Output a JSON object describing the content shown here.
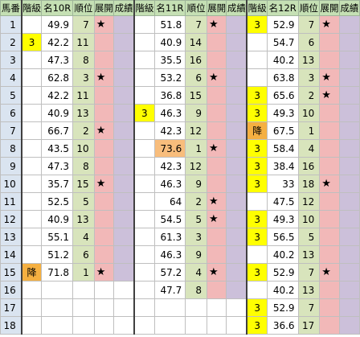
{
  "header": {
    "ban": "馬番",
    "races": [
      {
        "kyu": "階級",
        "name": "名10R",
        "rank": "順位",
        "tenkai": "展開",
        "seiseki": "成績"
      },
      {
        "kyu": "階級",
        "name": "名11R",
        "rank": "順位",
        "tenkai": "展開",
        "seiseki": "成績"
      },
      {
        "kyu": "階級",
        "name": "名12R",
        "rank": "順位",
        "tenkai": "展開",
        "seiseki": "成績"
      }
    ]
  },
  "star": "★",
  "rows": [
    {
      "ban": "1",
      "races": [
        {
          "kyu": "",
          "score": "49.9",
          "rank": "7",
          "star": true
        },
        {
          "kyu": "",
          "score": "51.8",
          "rank": "7",
          "star": true
        },
        {
          "kyu": "3",
          "score": "52.9",
          "rank": "7",
          "star": true
        }
      ]
    },
    {
      "ban": "2",
      "races": [
        {
          "kyu": "3",
          "score": "42.2",
          "rank": "11",
          "star": false
        },
        {
          "kyu": "",
          "score": "40.9",
          "rank": "14",
          "star": false
        },
        {
          "kyu": "",
          "score": "54.7",
          "rank": "6",
          "star": false
        }
      ]
    },
    {
      "ban": "3",
      "races": [
        {
          "kyu": "",
          "score": "47.3",
          "rank": "8",
          "star": false
        },
        {
          "kyu": "",
          "score": "35.5",
          "rank": "16",
          "star": false
        },
        {
          "kyu": "",
          "score": "40.2",
          "rank": "13",
          "star": false
        }
      ]
    },
    {
      "ban": "4",
      "races": [
        {
          "kyu": "",
          "score": "62.8",
          "rank": "3",
          "star": true
        },
        {
          "kyu": "",
          "score": "53.2",
          "rank": "6",
          "star": true
        },
        {
          "kyu": "",
          "score": "63.8",
          "rank": "3",
          "star": true
        }
      ]
    },
    {
      "ban": "5",
      "races": [
        {
          "kyu": "",
          "score": "42.2",
          "rank": "11",
          "star": false
        },
        {
          "kyu": "",
          "score": "36.8",
          "rank": "15",
          "star": false
        },
        {
          "kyu": "3",
          "score": "65.6",
          "rank": "2",
          "star": true
        }
      ]
    },
    {
      "ban": "6",
      "races": [
        {
          "kyu": "",
          "score": "40.9",
          "rank": "13",
          "star": false
        },
        {
          "kyu": "3",
          "score": "46.3",
          "rank": "9",
          "star": false
        },
        {
          "kyu": "3",
          "score": "49.3",
          "rank": "10",
          "star": false
        }
      ]
    },
    {
      "ban": "7",
      "races": [
        {
          "kyu": "",
          "score": "66.7",
          "rank": "2",
          "star": true
        },
        {
          "kyu": "",
          "score": "42.3",
          "rank": "12",
          "star": false
        },
        {
          "kyu": "降",
          "score": "67.5",
          "rank": "1",
          "star": false
        }
      ]
    },
    {
      "ban": "8",
      "races": [
        {
          "kyu": "",
          "score": "43.5",
          "rank": "10",
          "star": false
        },
        {
          "kyu": "",
          "score": "73.6",
          "rank": "1",
          "star": true,
          "hi": true
        },
        {
          "kyu": "3",
          "score": "58.4",
          "rank": "4",
          "star": false
        }
      ]
    },
    {
      "ban": "9",
      "races": [
        {
          "kyu": "",
          "score": "47.3",
          "rank": "8",
          "star": false
        },
        {
          "kyu": "",
          "score": "42.3",
          "rank": "12",
          "star": false
        },
        {
          "kyu": "3",
          "score": "38.4",
          "rank": "16",
          "star": false
        }
      ]
    },
    {
      "ban": "10",
      "races": [
        {
          "kyu": "",
          "score": "35.7",
          "rank": "15",
          "star": true
        },
        {
          "kyu": "",
          "score": "46.3",
          "rank": "9",
          "star": false
        },
        {
          "kyu": "3",
          "score": "33",
          "rank": "18",
          "star": true
        }
      ]
    },
    {
      "ban": "11",
      "races": [
        {
          "kyu": "",
          "score": "52.5",
          "rank": "5",
          "star": false
        },
        {
          "kyu": "",
          "score": "64",
          "rank": "2",
          "star": true
        },
        {
          "kyu": "",
          "score": "47.5",
          "rank": "12",
          "star": false
        }
      ]
    },
    {
      "ban": "12",
      "races": [
        {
          "kyu": "",
          "score": "40.9",
          "rank": "13",
          "star": false
        },
        {
          "kyu": "",
          "score": "54.5",
          "rank": "5",
          "star": true
        },
        {
          "kyu": "3",
          "score": "49.3",
          "rank": "10",
          "star": false
        }
      ]
    },
    {
      "ban": "13",
      "races": [
        {
          "kyu": "",
          "score": "55.1",
          "rank": "4",
          "star": false
        },
        {
          "kyu": "",
          "score": "61.3",
          "rank": "3",
          "star": false
        },
        {
          "kyu": "3",
          "score": "56.5",
          "rank": "5",
          "star": false
        }
      ]
    },
    {
      "ban": "14",
      "races": [
        {
          "kyu": "",
          "score": "51.2",
          "rank": "6",
          "star": false
        },
        {
          "kyu": "",
          "score": "46.3",
          "rank": "9",
          "star": false
        },
        {
          "kyu": "",
          "score": "40.2",
          "rank": "13",
          "star": false
        }
      ]
    },
    {
      "ban": "15",
      "races": [
        {
          "kyu": "降",
          "score": "71.8",
          "rank": "1",
          "star": true
        },
        {
          "kyu": "",
          "score": "57.2",
          "rank": "4",
          "star": true
        },
        {
          "kyu": "3",
          "score": "52.9",
          "rank": "7",
          "star": true
        }
      ]
    },
    {
      "ban": "16",
      "races": [
        null,
        {
          "kyu": "",
          "score": "47.7",
          "rank": "8",
          "star": false
        },
        {
          "kyu": "",
          "score": "40.2",
          "rank": "13",
          "star": false
        }
      ]
    },
    {
      "ban": "17",
      "races": [
        null,
        null,
        {
          "kyu": "3",
          "score": "52.9",
          "rank": "7",
          "star": false
        }
      ]
    },
    {
      "ban": "18",
      "races": [
        null,
        null,
        {
          "kyu": "3",
          "score": "36.6",
          "rank": "17",
          "star": false
        }
      ]
    }
  ],
  "colors": {
    "header_bg": "#c5e0b4",
    "ban_bg": "#dae4f0",
    "kyu3_bg": "#ffff00",
    "kyu_demoted_bg": "#f5b041",
    "rank_bg": "#d8e4bc",
    "tenkai_bg": "#f2b8b8",
    "seiseki_bg": "#ccc0da",
    "score_highlight_bg": "#f8bd7c"
  }
}
